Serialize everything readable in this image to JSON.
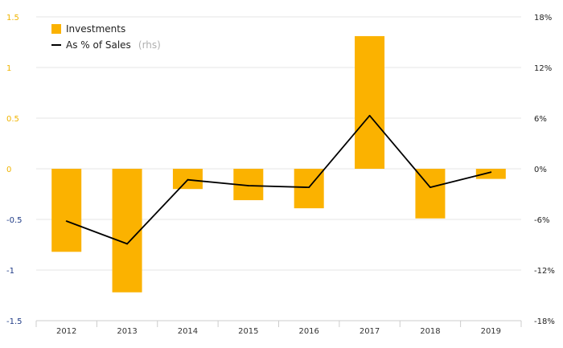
{
  "chart_data": {
    "type": "bar",
    "categories": [
      "2012",
      "2013",
      "2014",
      "2015",
      "2016",
      "2017",
      "2018",
      "2019"
    ],
    "series": [
      {
        "name": "Investments",
        "type": "bar",
        "axis": "left",
        "color": "#FBB200",
        "values": [
          -0.82,
          -1.22,
          -0.2,
          -0.31,
          -0.39,
          1.31,
          -0.49,
          -0.1
        ]
      },
      {
        "name": "As % of Sales",
        "name_suffix": "(rhs)",
        "type": "line",
        "axis": "right",
        "color": "#000000",
        "values": [
          -6.2,
          -8.9,
          -1.3,
          -2.0,
          -2.2,
          6.3,
          -2.2,
          -0.4
        ]
      }
    ],
    "left_axis": {
      "range": [
        -1.5,
        1.5
      ],
      "ticks": [
        "1.5",
        "1",
        "0.5",
        "0",
        "-0.5",
        "-1",
        "-1.5"
      ],
      "tick_values": [
        1.5,
        1,
        0.5,
        0,
        -0.5,
        -1,
        -1.5
      ],
      "positive_color": "#F0B400",
      "negative_color": "#1F3B86"
    },
    "right_axis": {
      "range": [
        -18,
        18
      ],
      "ticks": [
        "18%",
        "12%",
        "6%",
        "0%",
        "-6%",
        "-12%",
        "-18%"
      ]
    },
    "grid": true,
    "legend_position": "top-left"
  }
}
